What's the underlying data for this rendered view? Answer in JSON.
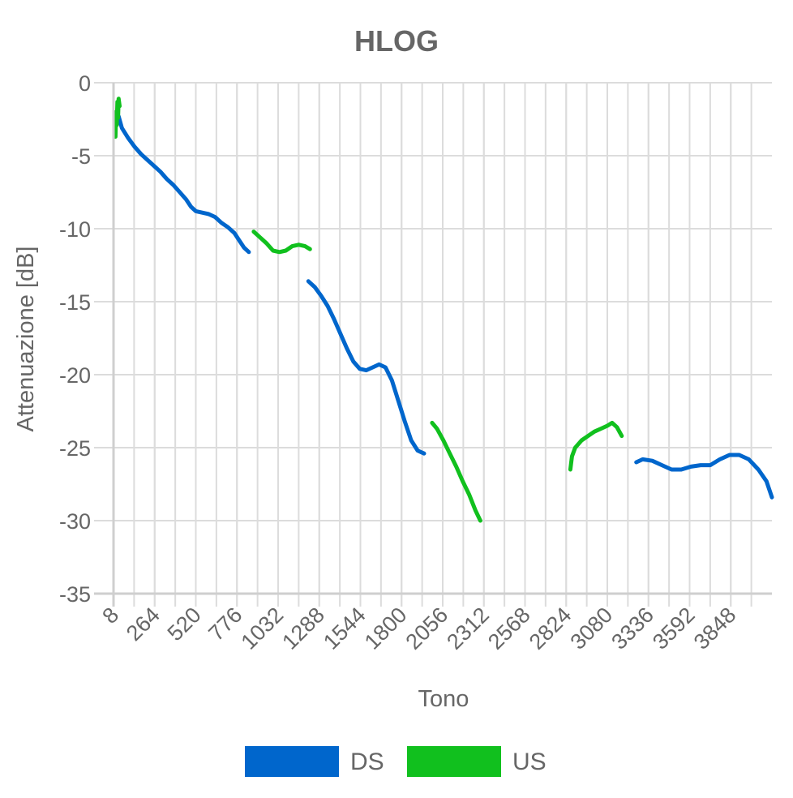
{
  "chart_data": {
    "type": "line",
    "title": "HLOG",
    "xlabel": "Tono",
    "ylabel": "Attenuazione [dB]",
    "xlim": [
      8,
      4104
    ],
    "ylim": [
      -35,
      0
    ],
    "x_ticks": [
      8,
      264,
      520,
      776,
      1032,
      1288,
      1544,
      1800,
      2056,
      2312,
      2568,
      2824,
      3080,
      3336,
      3592,
      3848
    ],
    "y_ticks": [
      0,
      -5,
      -10,
      -15,
      -20,
      -25,
      -30,
      -35
    ],
    "grid": true,
    "legend_position": "bottom",
    "series": [
      {
        "name": "DS",
        "color": "#0066CC",
        "segments": [
          [
            [
              40,
              -2.3
            ],
            [
              60,
              -3.1
            ],
            [
              100,
              -3.8
            ],
            [
              140,
              -4.4
            ],
            [
              180,
              -4.9
            ],
            [
              220,
              -5.3
            ],
            [
              260,
              -5.7
            ],
            [
              300,
              -6.1
            ],
            [
              340,
              -6.6
            ],
            [
              380,
              -7.0
            ],
            [
              420,
              -7.5
            ],
            [
              460,
              -8.0
            ],
            [
              490,
              -8.5
            ],
            [
              520,
              -8.8
            ],
            [
              560,
              -8.9
            ],
            [
              600,
              -9.0
            ],
            [
              640,
              -9.2
            ],
            [
              680,
              -9.6
            ],
            [
              720,
              -9.9
            ],
            [
              760,
              -10.3
            ],
            [
              790,
              -10.8
            ],
            [
              820,
              -11.3
            ],
            [
              850,
              -11.6
            ]
          ],
          [
            [
              1220,
              -13.6
            ],
            [
              1260,
              -14.0
            ],
            [
              1300,
              -14.6
            ],
            [
              1340,
              -15.3
            ],
            [
              1380,
              -16.2
            ],
            [
              1420,
              -17.2
            ],
            [
              1460,
              -18.2
            ],
            [
              1500,
              -19.1
            ],
            [
              1540,
              -19.6
            ],
            [
              1580,
              -19.7
            ],
            [
              1620,
              -19.5
            ],
            [
              1660,
              -19.3
            ],
            [
              1700,
              -19.5
            ],
            [
              1740,
              -20.4
            ],
            [
              1780,
              -21.8
            ],
            [
              1820,
              -23.2
            ],
            [
              1860,
              -24.5
            ],
            [
              1900,
              -25.2
            ],
            [
              1940,
              -25.4
            ]
          ],
          [
            [
              3260,
              -26.0
            ],
            [
              3300,
              -25.8
            ],
            [
              3360,
              -25.9
            ],
            [
              3420,
              -26.2
            ],
            [
              3480,
              -26.5
            ],
            [
              3540,
              -26.5
            ],
            [
              3600,
              -26.3
            ],
            [
              3660,
              -26.2
            ],
            [
              3720,
              -26.2
            ],
            [
              3780,
              -25.8
            ],
            [
              3840,
              -25.5
            ],
            [
              3900,
              -25.5
            ],
            [
              3960,
              -25.8
            ],
            [
              4020,
              -26.5
            ],
            [
              4070,
              -27.3
            ],
            [
              4104,
              -28.4
            ]
          ]
        ]
      },
      {
        "name": "US",
        "color": "#11C01E",
        "segments": [
          [
            [
              20,
              -3.7
            ],
            [
              24,
              -2.0
            ],
            [
              28,
              -2.9
            ],
            [
              32,
              -1.3
            ],
            [
              36,
              -2.4
            ],
            [
              40,
              -1.1
            ],
            [
              46,
              -1.6
            ]
          ],
          [
            [
              880,
              -10.2
            ],
            [
              920,
              -10.6
            ],
            [
              960,
              -11.0
            ],
            [
              1000,
              -11.5
            ],
            [
              1040,
              -11.6
            ],
            [
              1080,
              -11.5
            ],
            [
              1120,
              -11.2
            ],
            [
              1160,
              -11.1
            ],
            [
              1200,
              -11.2
            ],
            [
              1230,
              -11.4
            ]
          ],
          [
            [
              1990,
              -23.3
            ],
            [
              2020,
              -23.7
            ],
            [
              2060,
              -24.5
            ],
            [
              2100,
              -25.4
            ],
            [
              2140,
              -26.3
            ],
            [
              2180,
              -27.3
            ],
            [
              2220,
              -28.2
            ],
            [
              2260,
              -29.3
            ],
            [
              2290,
              -30.0
            ]
          ],
          [
            [
              2850,
              -26.5
            ],
            [
              2860,
              -25.6
            ],
            [
              2880,
              -25.0
            ],
            [
              2920,
              -24.5
            ],
            [
              2960,
              -24.2
            ],
            [
              3000,
              -23.9
            ],
            [
              3040,
              -23.7
            ],
            [
              3080,
              -23.5
            ],
            [
              3110,
              -23.3
            ],
            [
              3140,
              -23.6
            ],
            [
              3170,
              -24.2
            ]
          ]
        ]
      }
    ]
  }
}
